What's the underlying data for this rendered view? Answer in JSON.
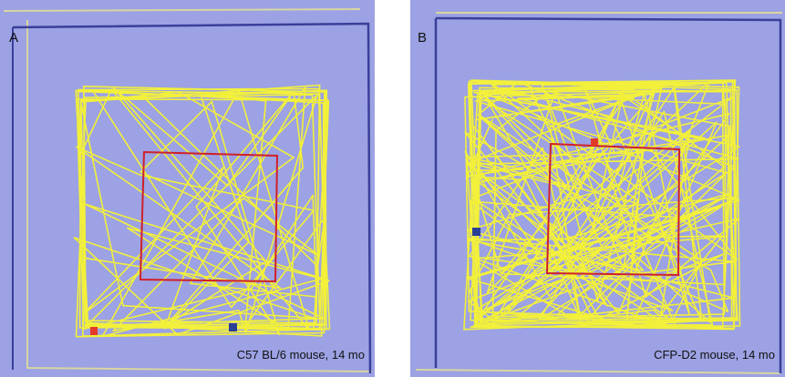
{
  "panels": [
    {
      "label": "A",
      "caption": "C57 BL/6 mouse, 14 mo"
    },
    {
      "label": "B",
      "caption": "CFP-D2 mouse, 14 mo"
    }
  ]
}
